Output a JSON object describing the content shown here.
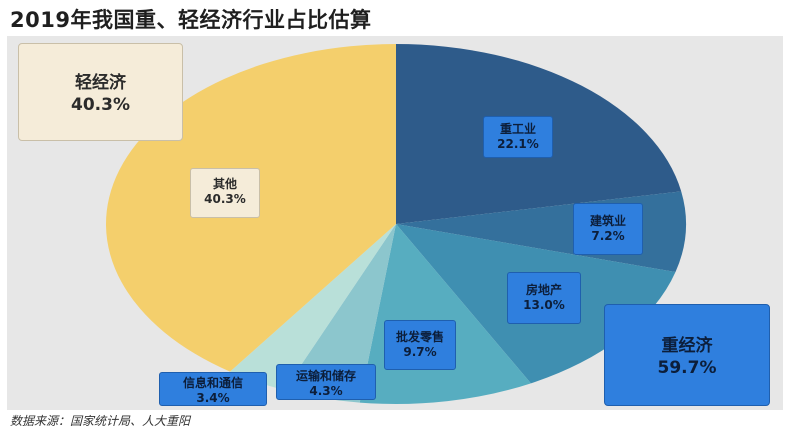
{
  "title": "2019年我国重、轻经济行业占比估算",
  "source": "数据来源：国家统计局、人大重阳",
  "groups": {
    "light": {
      "name": "轻经济",
      "value": "40.3%"
    },
    "heavy": {
      "name": "重经济",
      "value": "59.7%"
    }
  },
  "colors": {
    "heavy_industry": "#2e5b8a",
    "construction": "#34709c",
    "real_estate": "#3f8fb1",
    "wholesale_retail": "#57adc0",
    "transport_storage": "#8cc6cd",
    "info_communication": "#b9e0d9",
    "other": "#f4cf6c",
    "panel_bg": "#e7e7e7"
  },
  "chart_data": {
    "type": "pie",
    "title": "2019年我国重、轻经济行业占比估算",
    "start_angle_deg": 0,
    "direction": "clockwise",
    "slices": [
      {
        "name": "重工业",
        "value": 22.1,
        "label": "22.1%"
      },
      {
        "name": "建筑业",
        "value": 7.2,
        "label": "7.2%"
      },
      {
        "name": "房地产",
        "value": 13.0,
        "label": "13.0%"
      },
      {
        "name": "批发零售",
        "value": 9.7,
        "label": "9.7%"
      },
      {
        "name": "运输和储存",
        "value": 4.3,
        "label": "4.3%"
      },
      {
        "name": "信息和通信",
        "value": 3.4,
        "label": "3.4%"
      },
      {
        "name": "其他",
        "value": 40.3,
        "label": "40.3%"
      }
    ]
  }
}
